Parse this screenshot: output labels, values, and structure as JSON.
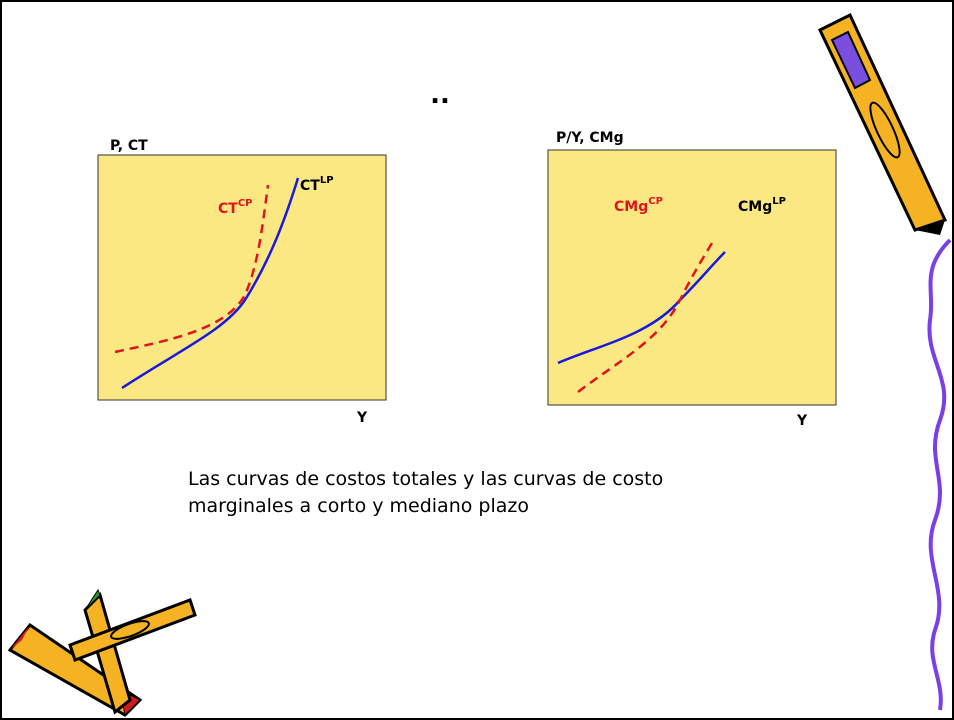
{
  "title": "..",
  "panels": [
    {
      "y_label": "P, CT",
      "x_label": "Y",
      "curves": [
        {
          "label": "CT",
          "superscript": "CP"
        },
        {
          "label": "CT",
          "superscript": "LP"
        }
      ]
    },
    {
      "y_label": "P/Y, CMg",
      "x_label": "Y",
      "curves": [
        {
          "label": "CMg",
          "superscript": "CP"
        },
        {
          "label": "CMg",
          "superscript": "LP"
        }
      ]
    }
  ],
  "caption": [
    "Las curvas de costos totales y las curvas de costo",
    "marginales a corto y mediano plazo"
  ]
}
